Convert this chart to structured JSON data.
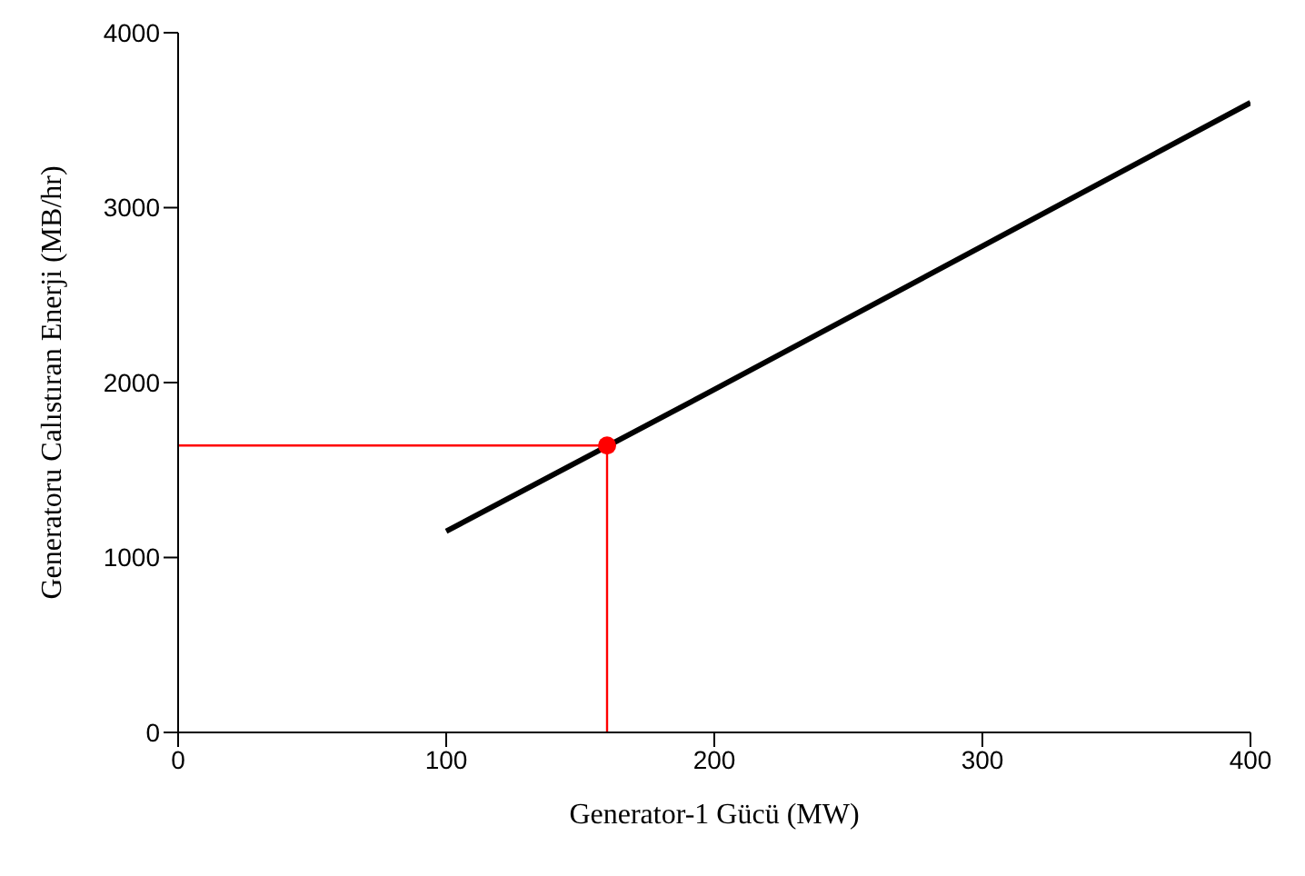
{
  "chart_data": {
    "type": "line",
    "xlabel": "Generator-1 Gücü (MW)",
    "ylabel": "Generatoru Calıstıran Enerji (MB/hr)",
    "xlim": [
      0,
      400
    ],
    "xticks": [
      0,
      100,
      200,
      300,
      400
    ],
    "ylim": [
      0,
      4000
    ],
    "yticks": [
      0,
      1000,
      2000,
      3000,
      4000
    ],
    "grid": false,
    "legend": false,
    "marker": "none",
    "series": [
      {
        "color": "#000000",
        "x": [
          100,
          200,
          300,
          400
        ],
        "values": [
          1150,
          1960,
          2780,
          3600
        ]
      },
      {
        "type": "line",
        "color": "#ff0000",
        "x": [
          0,
          160,
          160
        ],
        "values": [
          1640,
          1640,
          0
        ]
      },
      {
        "type": "scatter",
        "color": "#ff0000",
        "marker": "circle",
        "x": [
          160
        ],
        "values": [
          1640
        ]
      }
    ]
  }
}
